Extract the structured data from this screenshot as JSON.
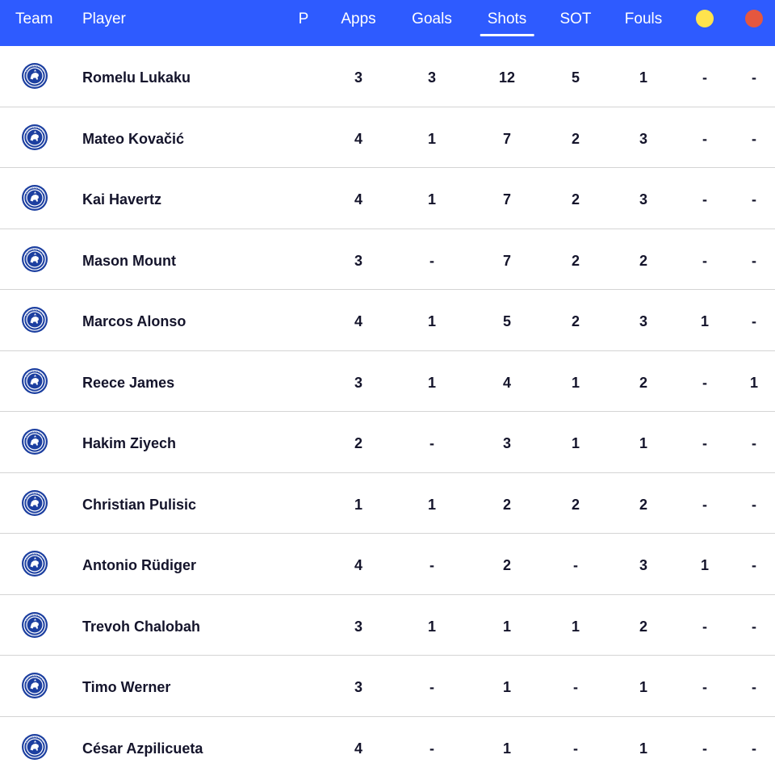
{
  "header": {
    "team": "Team",
    "player": "Player",
    "p": "P",
    "apps": "Apps",
    "goals": "Goals",
    "shots": "Shots",
    "sot": "SOT",
    "fouls": "Fouls",
    "yellow_card_icon": "yellow-card-icon",
    "red_card_icon": "red-card-icon",
    "active_column": "Shots"
  },
  "colors": {
    "header_bg": "#2e5bff",
    "yellow_card": "#ffe34d",
    "red_card": "#e5573f",
    "crest_blue": "#1c3fa0",
    "text": "#14142b"
  },
  "rows": [
    {
      "player": "Romelu Lukaku",
      "apps": "3",
      "goals": "3",
      "shots": "12",
      "sot": "5",
      "fouls": "1",
      "yellow": "-",
      "red": "-"
    },
    {
      "player": "Mateo Kovačić",
      "apps": "4",
      "goals": "1",
      "shots": "7",
      "sot": "2",
      "fouls": "3",
      "yellow": "-",
      "red": "-"
    },
    {
      "player": "Kai Havertz",
      "apps": "4",
      "goals": "1",
      "shots": "7",
      "sot": "2",
      "fouls": "3",
      "yellow": "-",
      "red": "-"
    },
    {
      "player": "Mason Mount",
      "apps": "3",
      "goals": "-",
      "shots": "7",
      "sot": "2",
      "fouls": "2",
      "yellow": "-",
      "red": "-"
    },
    {
      "player": "Marcos Alonso",
      "apps": "4",
      "goals": "1",
      "shots": "5",
      "sot": "2",
      "fouls": "3",
      "yellow": "1",
      "red": "-"
    },
    {
      "player": "Reece James",
      "apps": "3",
      "goals": "1",
      "shots": "4",
      "sot": "1",
      "fouls": "2",
      "yellow": "-",
      "red": "1"
    },
    {
      "player": "Hakim Ziyech",
      "apps": "2",
      "goals": "-",
      "shots": "3",
      "sot": "1",
      "fouls": "1",
      "yellow": "-",
      "red": "-"
    },
    {
      "player": "Christian Pulisic",
      "apps": "1",
      "goals": "1",
      "shots": "2",
      "sot": "2",
      "fouls": "2",
      "yellow": "-",
      "red": "-"
    },
    {
      "player": "Antonio Rüdiger",
      "apps": "4",
      "goals": "-",
      "shots": "2",
      "sot": "-",
      "fouls": "3",
      "yellow": "1",
      "red": "-"
    },
    {
      "player": "Trevoh Chalobah",
      "apps": "3",
      "goals": "1",
      "shots": "1",
      "sot": "1",
      "fouls": "2",
      "yellow": "-",
      "red": "-"
    },
    {
      "player": "Timo Werner",
      "apps": "3",
      "goals": "-",
      "shots": "1",
      "sot": "-",
      "fouls": "1",
      "yellow": "-",
      "red": "-"
    },
    {
      "player": "César Azpilicueta",
      "apps": "4",
      "goals": "-",
      "shots": "1",
      "sot": "-",
      "fouls": "1",
      "yellow": "-",
      "red": "-"
    }
  ]
}
